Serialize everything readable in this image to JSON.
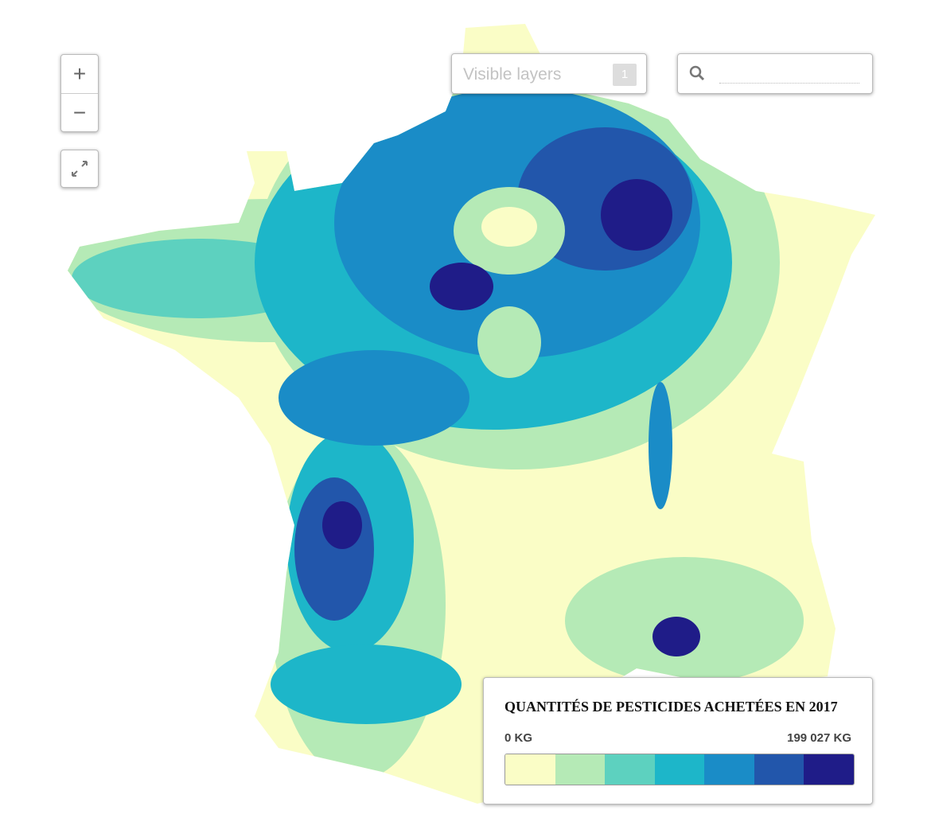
{
  "map_controls": {
    "zoom_in": "+",
    "zoom_out": "−"
  },
  "layers_control": {
    "label": "Visible layers",
    "count": 1
  },
  "legend": {
    "title": "QUANTITÉS DE PESTICIDES ACHETÉES EN 2017",
    "min_label": "0 KG",
    "max_label": "199 027 KG",
    "colors": [
      "#fafdc6",
      "#b5eab6",
      "#5dd1bf",
      "#1db6c9",
      "#1a8cc7",
      "#2256ab",
      "#1f1c88"
    ]
  }
}
